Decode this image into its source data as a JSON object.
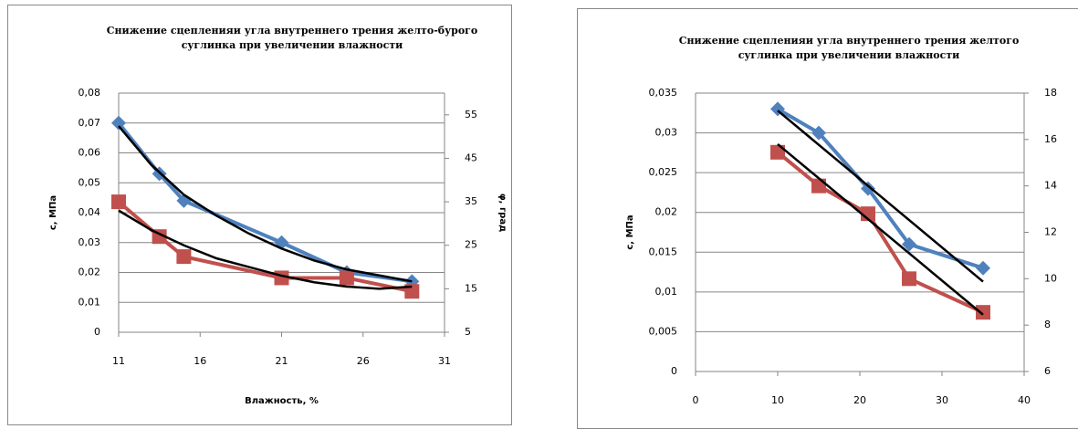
{
  "chart_data": [
    {
      "type": "line",
      "title": [
        "Снижение сцепленияи угла внутреннего трения желто-бурого",
        "суглинка при увеличении влажности"
      ],
      "x_label": "Влажность, %",
      "y_label": "c, МПа",
      "y2_label": "φ, град",
      "xlim": [
        11,
        31
      ],
      "xticks": [
        11,
        16,
        21,
        26,
        31
      ],
      "ylim": [
        0,
        0.08
      ],
      "yticks": [
        0,
        {
          "value": 0.01,
          "label": "0,01"
        },
        {
          "value": 0.02,
          "label": "0,02"
        },
        {
          "value": 0.03,
          "label": "0,03"
        },
        {
          "value": 0.04,
          "label": "0,04"
        },
        {
          "value": 0.05,
          "label": "0,05"
        },
        {
          "value": 0.06,
          "label": "0,06"
        },
        {
          "value": 0.07,
          "label": "0,07"
        },
        {
          "value": 0.08,
          "label": "0,08"
        }
      ],
      "y2lim": [
        5,
        60
      ],
      "y2ticks": [
        5,
        15,
        25,
        35,
        45,
        55
      ],
      "series": [
        {
          "color": "#4f81bd",
          "marker": "diamond",
          "x": [
            11,
            13.5,
            15,
            21,
            25,
            29
          ],
          "values": [
            0.07,
            0.053,
            0.044,
            0.03,
            0.02,
            0.017
          ]
        },
        {
          "color": "#c0504d",
          "marker": "square",
          "axis": "y2",
          "x": [
            11,
            13.5,
            15,
            21,
            25,
            29
          ],
          "values": [
            35,
            27,
            22.4,
            17.5,
            17.5,
            14.4
          ]
        },
        {
          "color": "#000000",
          "x": [
            11,
            13,
            15,
            17,
            19,
            21,
            23,
            25,
            27,
            29
          ],
          "values": [
            0.069,
            0.056,
            0.046,
            0.039,
            0.033,
            0.028,
            0.024,
            0.021,
            0.019,
            0.017
          ]
        },
        {
          "color": "#000000",
          "axis": "y2",
          "x": [
            11,
            13,
            15,
            17,
            19,
            21,
            23,
            25,
            27,
            29
          ],
          "values": [
            33,
            28.5,
            25,
            22,
            20,
            18,
            16.5,
            15.5,
            15,
            15.5
          ]
        }
      ]
    },
    {
      "type": "line",
      "title": [
        "Снижение сцепленияи угла внутреннего трения желтого",
        "суглинка при увеличении влажности"
      ],
      "y_label": "c, МПа",
      "xlim": [
        0,
        40
      ],
      "xticks": [
        0,
        10,
        20,
        30,
        40
      ],
      "ylim": [
        0,
        0.035
      ],
      "yticks": [
        0,
        {
          "value": 0.005,
          "label": "0,005"
        },
        {
          "value": 0.01,
          "label": "0,01"
        },
        {
          "value": 0.015,
          "label": "0,015"
        },
        {
          "value": 0.02,
          "label": "0,02"
        },
        {
          "value": 0.025,
          "label": "0,025"
        },
        {
          "value": 0.03,
          "label": "0,03"
        },
        {
          "value": 0.035,
          "label": "0,035"
        }
      ],
      "y2lim": [
        6,
        18
      ],
      "y2ticks": [
        6,
        8,
        10,
        12,
        14,
        16,
        18
      ],
      "series": [
        {
          "color": "#4f81bd",
          "marker": "diamond",
          "x": [
            10,
            15,
            21,
            26,
            35
          ],
          "values": [
            0.033,
            0.03,
            0.023,
            0.016,
            0.013
          ]
        },
        {
          "color": "#c0504d",
          "marker": "square",
          "axis": "y2",
          "x": [
            10,
            15,
            21,
            26,
            35
          ],
          "values": [
            15.45,
            14,
            12.8,
            10,
            8.55
          ]
        },
        {
          "color": "#000000",
          "x": [
            10,
            35
          ],
          "values": [
            0.0328,
            0.0113
          ]
        },
        {
          "color": "#000000",
          "axis": "y2",
          "x": [
            10,
            35
          ],
          "values": [
            15.8,
            8.45
          ]
        }
      ]
    }
  ]
}
